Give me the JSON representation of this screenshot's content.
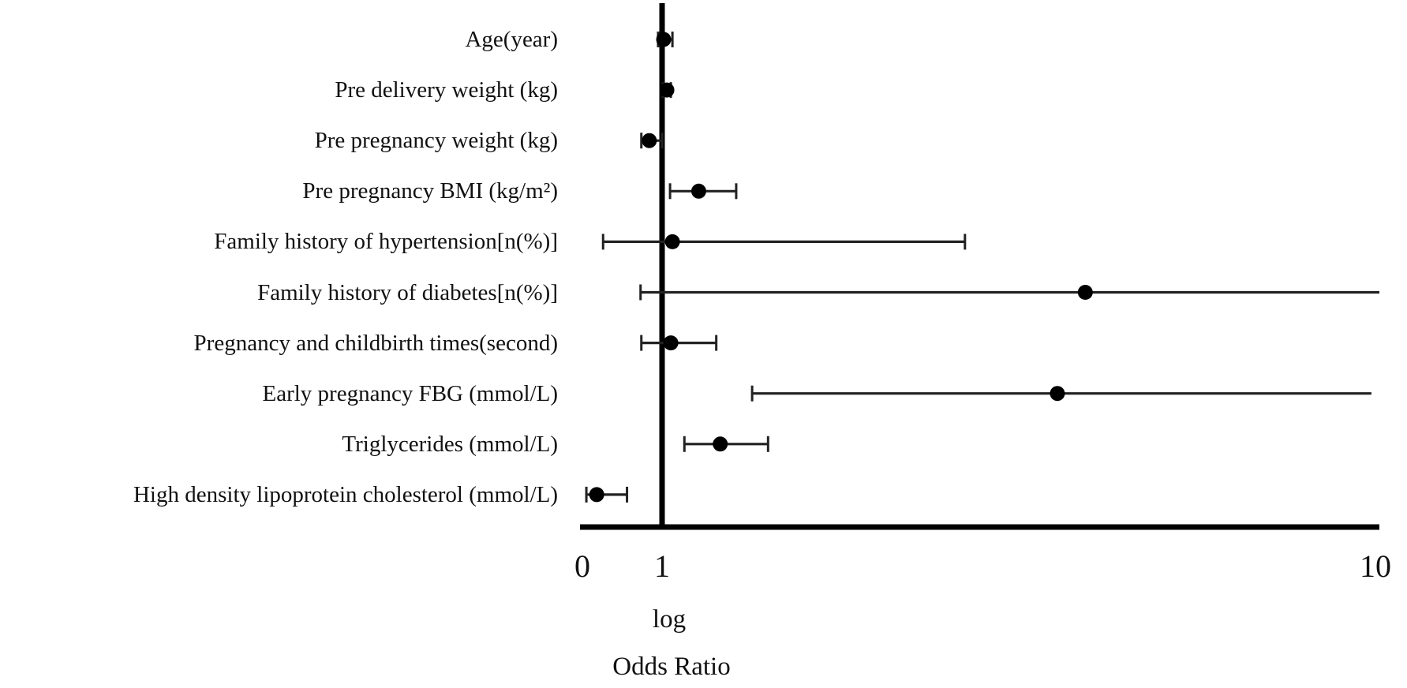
{
  "figure": {
    "background_color": "#ffffff",
    "axis_color": "#000000",
    "marker_color": "#000000",
    "ci_line_color": "#222222"
  },
  "chart_data": {
    "type": "scatter",
    "subtype": "forest-plot-horizontal-error-bars",
    "title": "",
    "x_axis": {
      "scale": "linear",
      "range": [
        0,
        10
      ],
      "ticks": [
        0,
        1,
        10
      ],
      "tick_labels": [
        "0",
        "1",
        "10"
      ],
      "label_lines": [
        "log",
        "Odds Ratio"
      ],
      "reference_line_x": 1,
      "grid": false
    },
    "rows": [
      {
        "label": "Age(year)",
        "or": 1.02,
        "ci_low": 0.95,
        "ci_high": 1.13,
        "ci_right_clipped": false
      },
      {
        "label": "Pre delivery weight (kg)",
        "or": 1.06,
        "ci_low": 1.01,
        "ci_high": 1.11,
        "ci_right_clipped": false
      },
      {
        "label": "Pre pregnancy weight (kg)",
        "or": 0.84,
        "ci_low": 0.74,
        "ci_high": 1.0,
        "ci_right_clipped": false
      },
      {
        "label": "Pre pregnancy BMI (kg/m²)",
        "or": 1.46,
        "ci_low": 1.1,
        "ci_high": 1.93,
        "ci_right_clipped": false
      },
      {
        "label": "Family history of hypertension[n(%)]",
        "or": 1.13,
        "ci_low": 0.26,
        "ci_high": 4.8,
        "ci_right_clipped": false
      },
      {
        "label": "Family history of diabetes[n(%)]",
        "or": 6.31,
        "ci_low": 0.73,
        "ci_high": 10.0,
        "ci_right_clipped": true
      },
      {
        "label": "Pregnancy and childbirth times(second)",
        "or": 1.11,
        "ci_low": 0.74,
        "ci_high": 1.68,
        "ci_right_clipped": false
      },
      {
        "label": "Early pregnancy FBG (mmol/L)",
        "or": 5.96,
        "ci_low": 2.13,
        "ci_high": 9.9,
        "ci_right_clipped": true
      },
      {
        "label": "Triglycerides (mmol/L)",
        "or": 1.73,
        "ci_low": 1.28,
        "ci_high": 2.33,
        "ci_right_clipped": false
      },
      {
        "label": "High density lipoprotein cholesterol (mmol/L)",
        "or": 0.18,
        "ci_low": 0.05,
        "ci_high": 0.56,
        "ci_right_clipped": false
      }
    ]
  }
}
